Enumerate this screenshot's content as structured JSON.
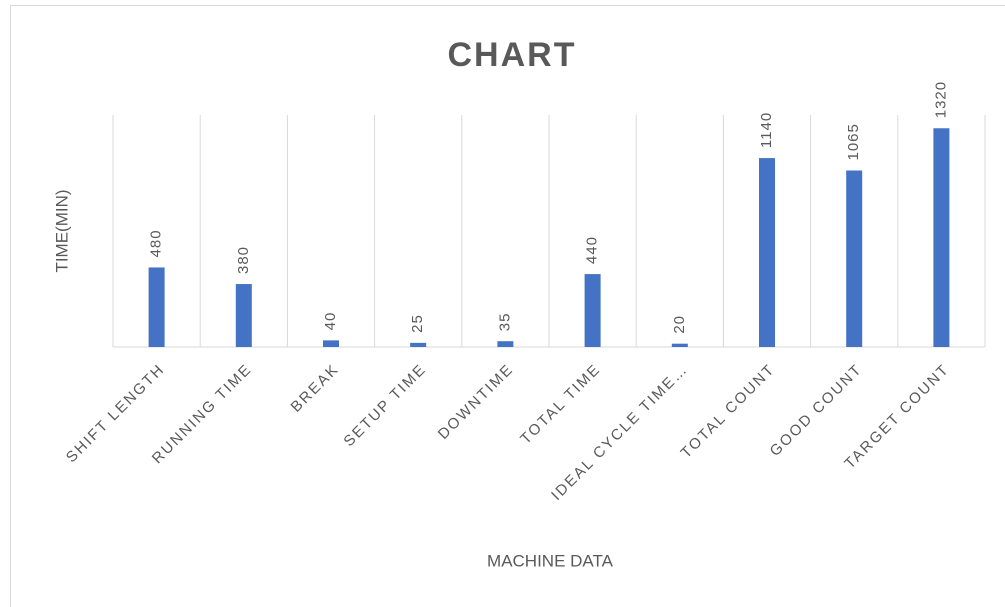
{
  "chart_data": {
    "type": "bar",
    "title": "CHART",
    "x_label": "MACHINE DATA",
    "y_label": "TIME(MIN)",
    "categories": [
      "SHIFT LENGTH",
      "RUNNING TIME",
      "BREAK",
      "SETUP TIME",
      "DOWNTIME",
      "TOTAL TIME",
      "IDEAL CYCLE TIME…",
      "TOTAL COUNT",
      "GOOD COUNT",
      "TARGET COUNT"
    ],
    "values": [
      480,
      380,
      40,
      25,
      35,
      440,
      20,
      1140,
      1065,
      1320
    ],
    "color": "#4472c4",
    "ylim": [
      0,
      1400
    ],
    "grid": true
  }
}
